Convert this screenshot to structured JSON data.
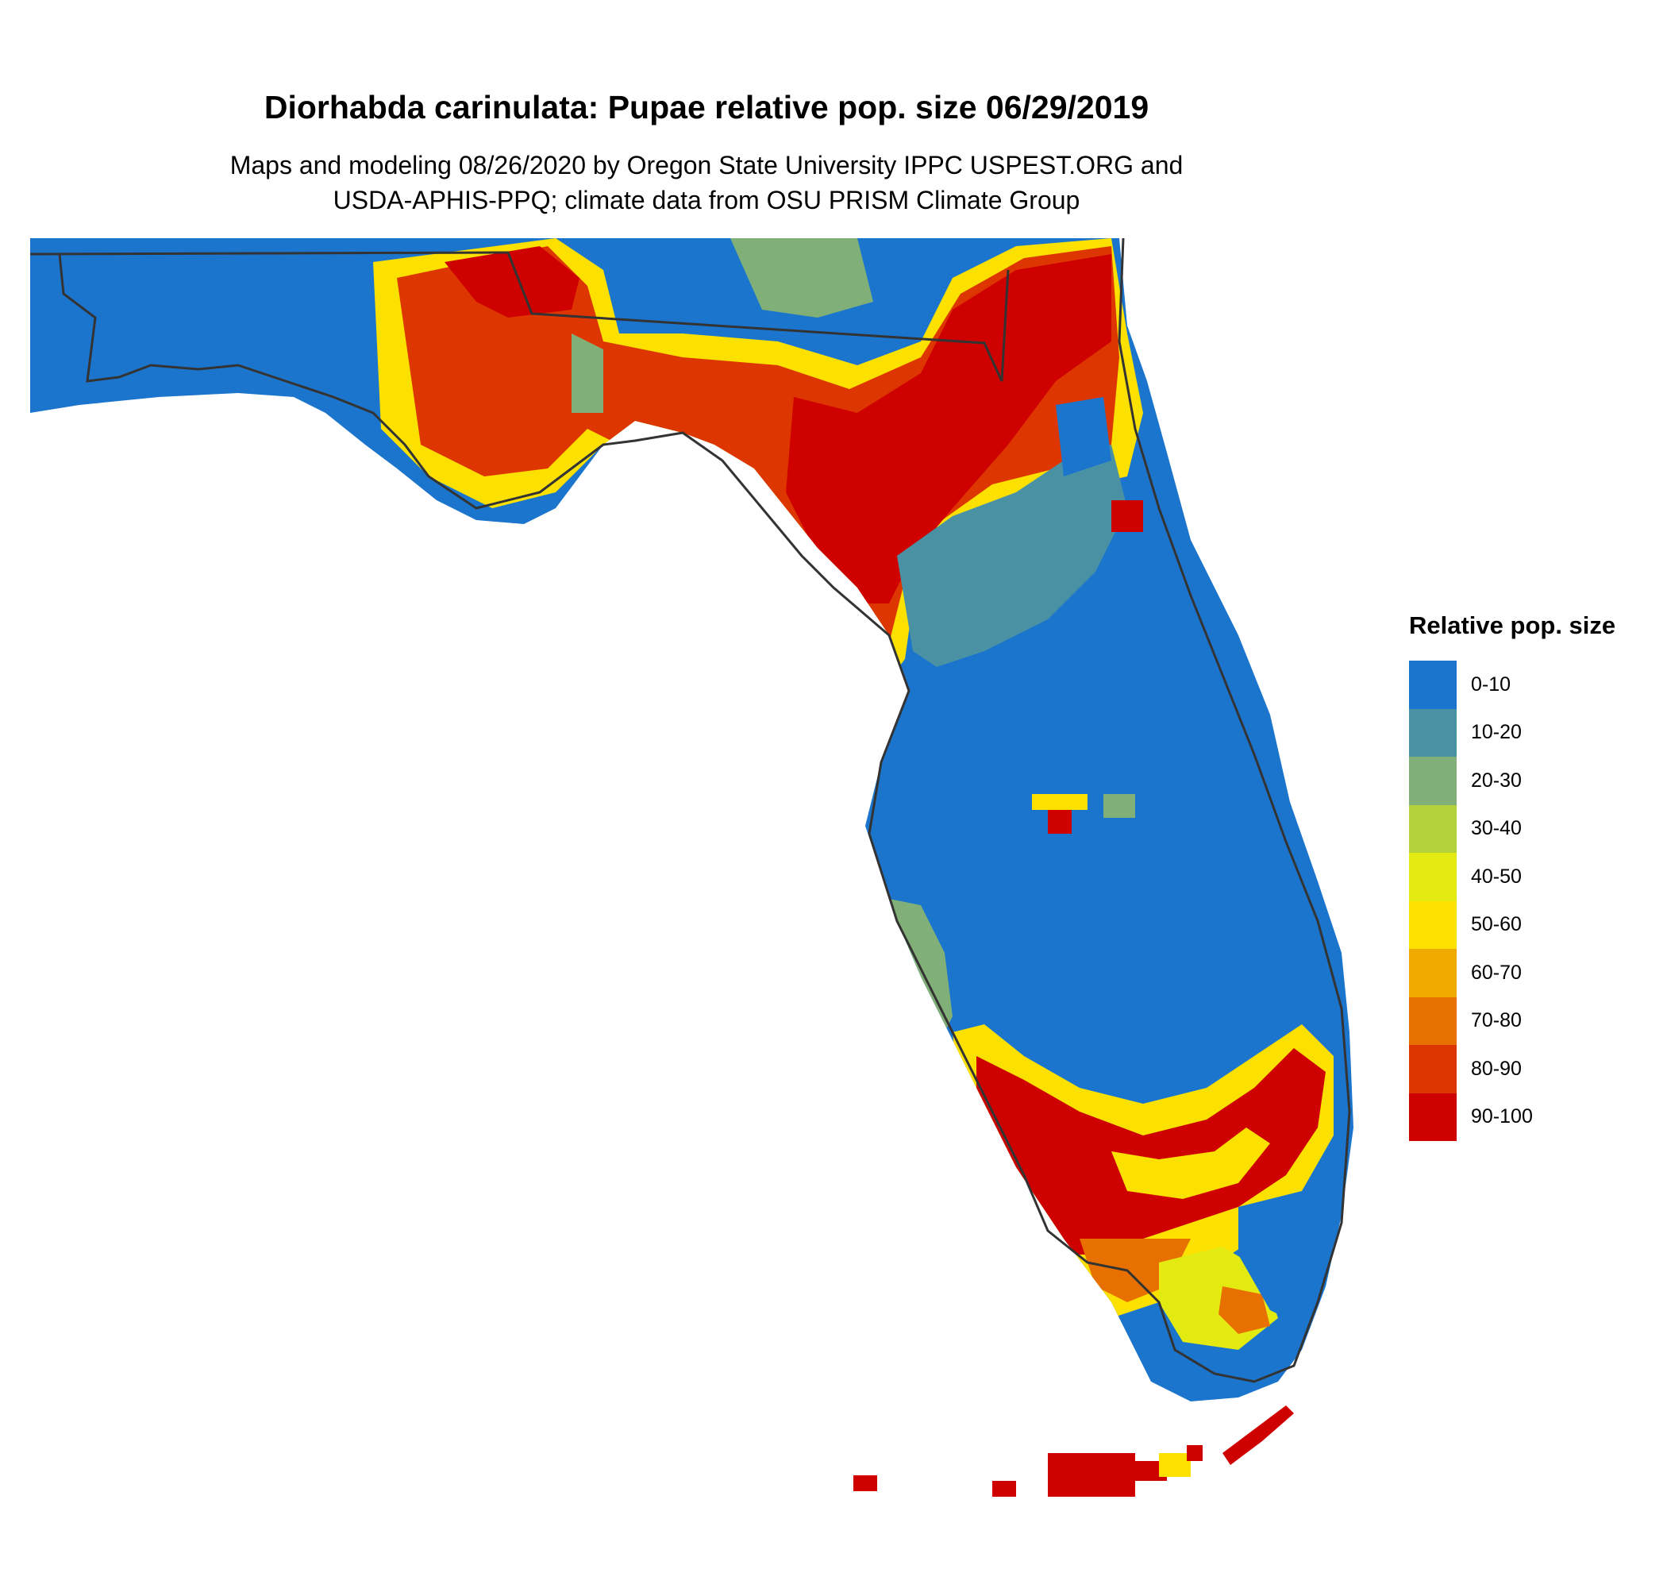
{
  "header": {
    "title": "Diorhabda carinulata: Pupae relative pop. size 06/29/2019",
    "subtitle_line1": "Maps and modeling 08/26/2020 by Oregon State University IPPC USPEST.ORG and",
    "subtitle_line2": "USDA-APHIS-PPQ; climate data from OSU PRISM Climate Group"
  },
  "legend": {
    "title": "Relative pop. size",
    "items": [
      {
        "label": "0-10",
        "color": "#1c75cd"
      },
      {
        "label": "10-20",
        "color": "#4a92a3"
      },
      {
        "label": "20-30",
        "color": "#80b078"
      },
      {
        "label": "30-40",
        "color": "#b3d13b"
      },
      {
        "label": "40-50",
        "color": "#e2ea12"
      },
      {
        "label": "50-60",
        "color": "#fbe000"
      },
      {
        "label": "60-70",
        "color": "#efaa00"
      },
      {
        "label": "70-80",
        "color": "#e77000"
      },
      {
        "label": "80-90",
        "color": "#dd3600"
      },
      {
        "label": "90-100",
        "color": "#cf0000"
      }
    ]
  }
}
